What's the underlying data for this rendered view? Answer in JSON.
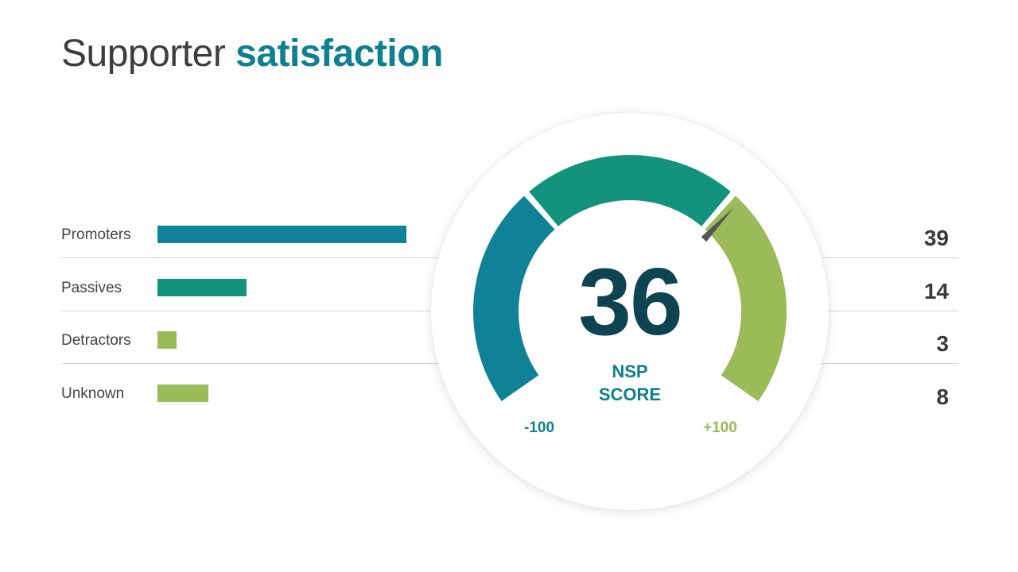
{
  "title": {
    "prefix": "Supporter",
    "accent": "satisfaction"
  },
  "colors": {
    "teal": "#0f8297",
    "green": "#13937b",
    "lime": "#9bba58",
    "score": "#0e4452",
    "needle": "#555555"
  },
  "chart_data": [
    {
      "type": "bar",
      "categories": [
        "Promoters",
        "Passives",
        "Detractors",
        "Unknown"
      ],
      "values": [
        39,
        14,
        3,
        8
      ],
      "value_labels": [
        "39",
        "14",
        "3",
        "8"
      ],
      "bar_colors": [
        "#0f8297",
        "#13937b",
        "#9bba58",
        "#9bba58"
      ],
      "title": "",
      "xlabel": "",
      "ylabel": ""
    },
    {
      "type": "gauge",
      "value": 36,
      "range": [
        -100,
        100
      ],
      "min_label": "-100",
      "max_label": "+100",
      "label_lines": [
        "NSP",
        "SCORE"
      ],
      "segments": [
        {
          "from": -100,
          "to": -33,
          "color": "#0f8297"
        },
        {
          "from": -33,
          "to": 33,
          "color": "#13937b"
        },
        {
          "from": 33,
          "to": 100,
          "color": "#9bba58"
        }
      ]
    }
  ]
}
